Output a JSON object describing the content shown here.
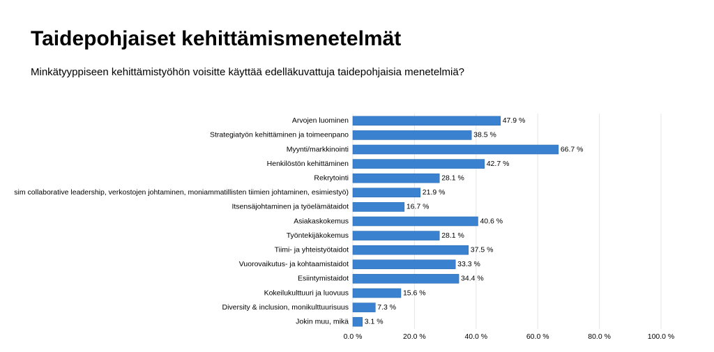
{
  "chart_data": {
    "type": "barh",
    "title": "Taidepohjaiset kehittämismenetelmät",
    "subtitle": "Minkätyyppiseen kehittämistyöhön voisitte käyttää edelläkuvattuja taidepohjaisia menetelmiä?",
    "categories": [
      "Arvojen luominen",
      "Strategiatyön kehittäminen ja toimeenpano",
      "Myynti/markkinointi",
      "Henkilöstön kehittäminen",
      "Rekrytointi",
      "sim collaborative leadership, verkostojen johtaminen, moniammatillisten tiimien johtaminen, esimiestyö)",
      "Itsensäjohtaminen ja työelämätaidot",
      "Asiakaskokemus",
      "Työntekijäkokemus",
      "Tiimi- ja yhteistyötaidot",
      "Vuorovaikutus- ja kohtaamistaidot",
      "Esiintymistaidot",
      "Kokeilukulttuuri ja luovuus",
      "Diversity & inclusion, monikulttuurisuus",
      "Jokin muu, mikä"
    ],
    "values": [
      47.9,
      38.5,
      66.7,
      42.7,
      28.1,
      21.9,
      16.7,
      40.6,
      28.1,
      37.5,
      33.3,
      34.4,
      15.6,
      7.3,
      3.1
    ],
    "value_labels": [
      "47.9 %",
      "38.5 %",
      "66.7 %",
      "42.7 %",
      "28.1 %",
      "21.9 %",
      "16.7 %",
      "40.6 %",
      "28.1 %",
      "37.5 %",
      "33.3 %",
      "34.4 %",
      "15.6 %",
      "7.3 %",
      "3.1 %"
    ],
    "color": "#3a82d0",
    "xlim": [
      0,
      100
    ],
    "xticks": [
      {
        "value": 0,
        "label": "0.0 %"
      },
      {
        "value": 20,
        "label": "20.0 %"
      },
      {
        "value": 40,
        "label": "40.0 %"
      },
      {
        "value": 60,
        "label": "60.0 %"
      },
      {
        "value": 80,
        "label": "80.0 %"
      },
      {
        "value": 100,
        "label": "100.0 %"
      }
    ],
    "grid": true
  }
}
